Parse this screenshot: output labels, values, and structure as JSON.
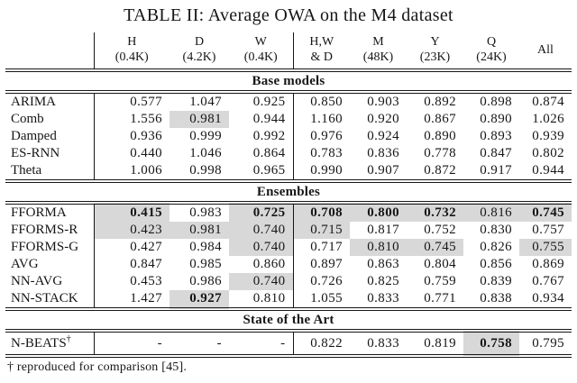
{
  "title": "TABLE II: Average OWA on the M4 dataset",
  "footnote": "† reproduced for comparison [45].",
  "colors": {
    "highlight": "#d8d8d8",
    "text": "#161616",
    "background": "#ffffff"
  },
  "table": {
    "name_header": "",
    "columns": [
      {
        "line1": "H",
        "line2": "(0.4K)"
      },
      {
        "line1": "D",
        "line2": "(4.2K)"
      },
      {
        "line1": "W",
        "line2": "(0.4K)"
      },
      {
        "line1": "H,W",
        "line2": "& D"
      },
      {
        "line1": "M",
        "line2": "(48K)"
      },
      {
        "line1": "Y",
        "line2": "(23K)"
      },
      {
        "line1": "Q",
        "line2": "(24K)"
      },
      {
        "line1": "All",
        "line2": ""
      }
    ],
    "sections": [
      {
        "label": "Base models",
        "rows": [
          {
            "name": "ARIMA",
            "sup": "",
            "values": [
              "0.577",
              "1.047",
              "0.925",
              "0.850",
              "0.903",
              "0.892",
              "0.898",
              "0.874"
            ],
            "bold": [],
            "highlight": []
          },
          {
            "name": "Comb",
            "sup": "",
            "values": [
              "1.556",
              "0.981",
              "0.944",
              "1.160",
              "0.920",
              "0.867",
              "0.890",
              "1.026"
            ],
            "bold": [],
            "highlight": [
              1
            ]
          },
          {
            "name": "Damped",
            "sup": "",
            "values": [
              "0.936",
              "0.999",
              "0.992",
              "0.976",
              "0.924",
              "0.890",
              "0.893",
              "0.939"
            ],
            "bold": [],
            "highlight": []
          },
          {
            "name": "ES-RNN",
            "sup": "",
            "values": [
              "0.440",
              "1.046",
              "0.864",
              "0.783",
              "0.836",
              "0.778",
              "0.847",
              "0.802"
            ],
            "bold": [],
            "highlight": []
          },
          {
            "name": "Theta",
            "sup": "",
            "values": [
              "1.006",
              "0.998",
              "0.965",
              "0.990",
              "0.907",
              "0.872",
              "0.917",
              "0.944"
            ],
            "bold": [],
            "highlight": []
          }
        ]
      },
      {
        "label": "Ensembles",
        "rows": [
          {
            "name": "FFORMA",
            "sup": "",
            "values": [
              "0.415",
              "0.983",
              "0.725",
              "0.708",
              "0.800",
              "0.732",
              "0.816",
              "0.745"
            ],
            "bold": [
              0,
              2,
              3,
              4,
              5,
              7
            ],
            "highlight": [
              0,
              2,
              3,
              4,
              5,
              6,
              7
            ]
          },
          {
            "name": "FFORMS-R",
            "sup": "",
            "values": [
              "0.423",
              "0.981",
              "0.740",
              "0.715",
              "0.817",
              "0.752",
              "0.830",
              "0.757"
            ],
            "bold": [],
            "highlight": [
              0,
              1,
              2,
              3
            ]
          },
          {
            "name": "FFORMS-G",
            "sup": "",
            "values": [
              "0.427",
              "0.984",
              "0.740",
              "0.717",
              "0.810",
              "0.745",
              "0.826",
              "0.755"
            ],
            "bold": [],
            "highlight": [
              2,
              4,
              5,
              7
            ]
          },
          {
            "name": "AVG",
            "sup": "",
            "values": [
              "0.847",
              "0.985",
              "0.860",
              "0.897",
              "0.863",
              "0.804",
              "0.856",
              "0.869"
            ],
            "bold": [],
            "highlight": []
          },
          {
            "name": "NN-AVG",
            "sup": "",
            "values": [
              "0.453",
              "0.986",
              "0.740",
              "0.726",
              "0.825",
              "0.759",
              "0.839",
              "0.767"
            ],
            "bold": [],
            "highlight": [
              2
            ]
          },
          {
            "name": "NN-STACK",
            "sup": "",
            "values": [
              "1.427",
              "0.927",
              "0.810",
              "1.055",
              "0.833",
              "0.771",
              "0.838",
              "0.934"
            ],
            "bold": [
              1
            ],
            "highlight": [
              1
            ]
          }
        ]
      },
      {
        "label": "State of the Art",
        "rows": [
          {
            "name": "N-BEATS",
            "sup": "†",
            "values": [
              "-",
              "-",
              "-",
              "0.822",
              "0.833",
              "0.819",
              "0.758",
              "0.795"
            ],
            "bold": [
              6
            ],
            "highlight": [
              6
            ]
          }
        ]
      }
    ]
  }
}
